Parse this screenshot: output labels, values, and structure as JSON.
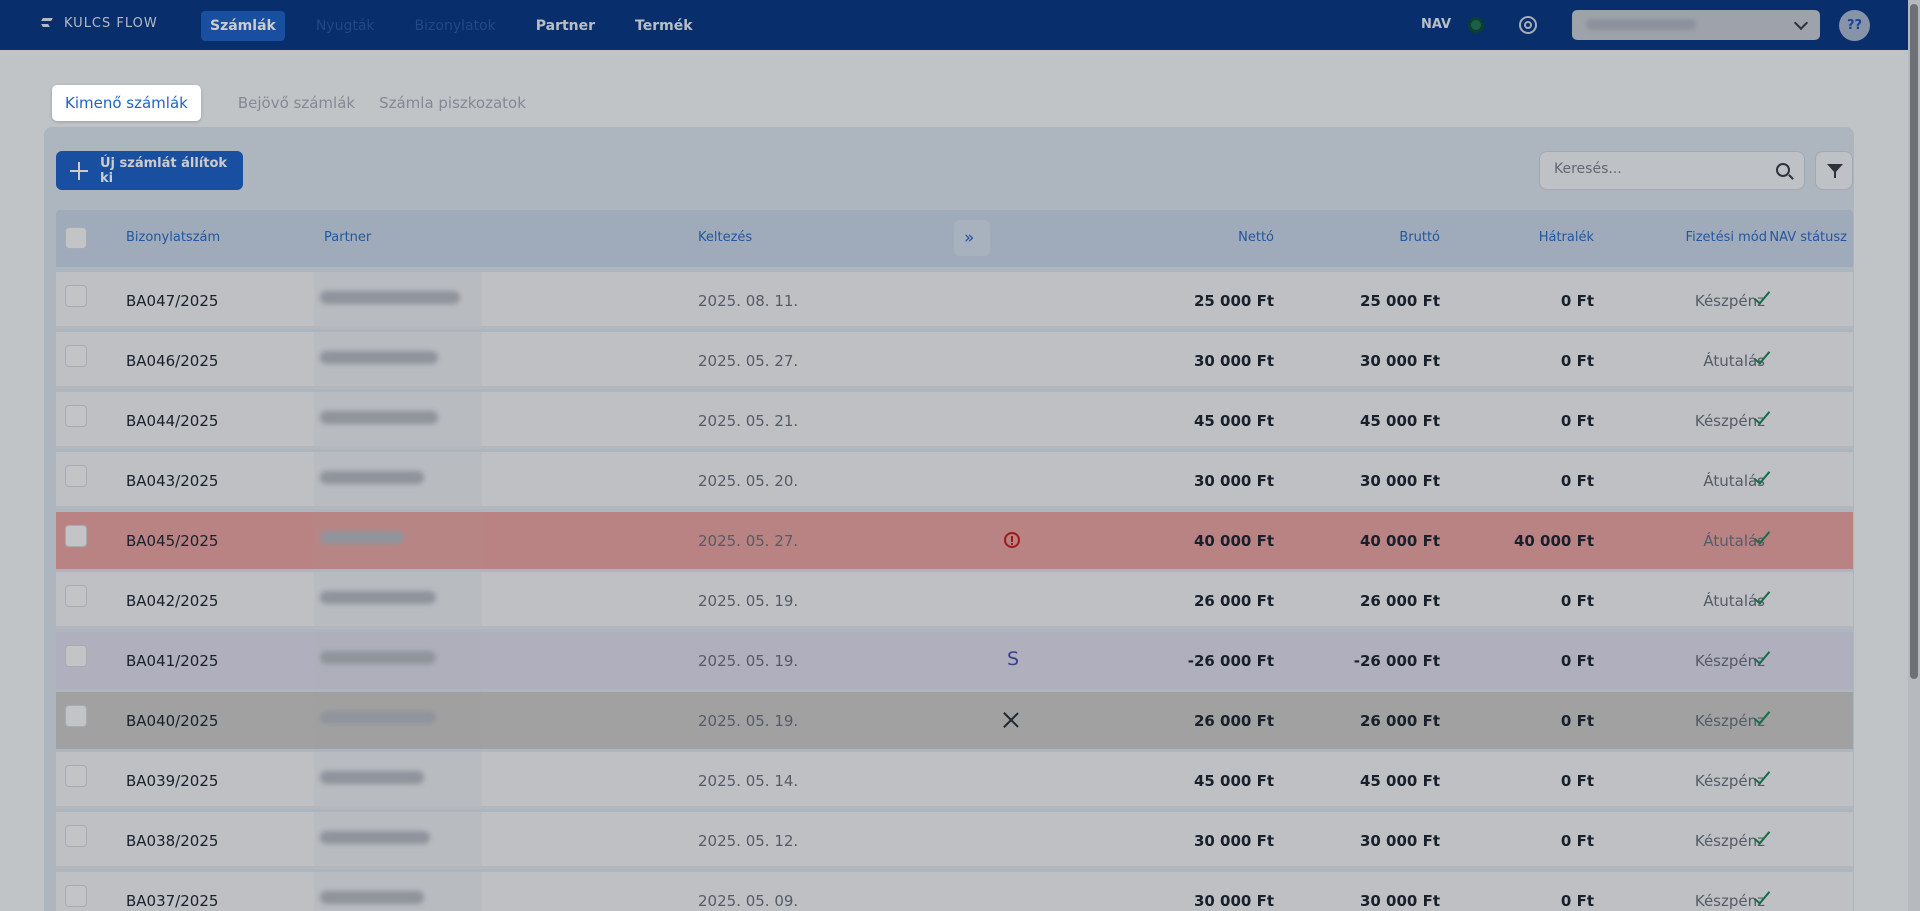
{
  "app": {
    "logo_text": "KULCS FLOW",
    "nav": [
      {
        "label": "Számlák",
        "state": "active"
      },
      {
        "label": "Nyugták",
        "state": "dim"
      },
      {
        "label": "Bizonylatok",
        "state": "dim"
      },
      {
        "label": "Partner",
        "state": "normal"
      },
      {
        "label": "Termék",
        "state": "normal"
      }
    ],
    "nav_status_label": "NAV",
    "help_label": "??"
  },
  "tabs": [
    {
      "label": "Kimenő számlák",
      "active": true
    },
    {
      "label": "Bejövő számlák",
      "active": false
    },
    {
      "label": "Számla piszkozatok",
      "active": false
    }
  ],
  "toolbar": {
    "new_invoice_label": "Új számlát állítok ki",
    "search_placeholder": "Keresés..."
  },
  "table": {
    "columns": {
      "number": "Bizonylatszám",
      "partner": "Partner",
      "date": "Keltezés",
      "net": "Nettó",
      "gross": "Bruttó",
      "arrears": "Hátralék",
      "payment": "Fizetési mód",
      "nav_status": "NAV státusz"
    },
    "rows": [
      {
        "number": "BA047/2025",
        "date": "2025. 08. 11.",
        "net": "25 000 Ft",
        "gross": "25 000 Ft",
        "arrears": "0 Ft",
        "payment": "Készpénz",
        "state": "normal",
        "marker": ""
      },
      {
        "number": "BA046/2025",
        "date": "2025. 05. 27.",
        "net": "30 000 Ft",
        "gross": "30 000 Ft",
        "arrears": "0 Ft",
        "payment": "Átutalás",
        "state": "normal",
        "marker": ""
      },
      {
        "number": "BA044/2025",
        "date": "2025. 05. 21.",
        "net": "45 000 Ft",
        "gross": "45 000 Ft",
        "arrears": "0 Ft",
        "payment": "Készpénz",
        "state": "normal",
        "marker": ""
      },
      {
        "number": "BA043/2025",
        "date": "2025. 05. 20.",
        "net": "30 000 Ft",
        "gross": "30 000 Ft",
        "arrears": "0 Ft",
        "payment": "Átutalás",
        "state": "normal",
        "marker": ""
      },
      {
        "number": "BA045/2025",
        "date": "2025. 05. 27.",
        "net": "40 000 Ft",
        "gross": "40 000 Ft",
        "arrears": "40 000 Ft",
        "payment": "Átutalás",
        "state": "error",
        "marker": "alert-circle-icon"
      },
      {
        "number": "BA042/2025",
        "date": "2025. 05. 19.",
        "net": "26 000 Ft",
        "gross": "26 000 Ft",
        "arrears": "0 Ft",
        "payment": "Átutalás",
        "state": "normal",
        "marker": ""
      },
      {
        "number": "BA041/2025",
        "date": "2025. 05. 19.",
        "net": "-26 000 Ft",
        "gross": "-26 000 Ft",
        "arrears": "0 Ft",
        "payment": "Készpénz",
        "state": "storno",
        "marker": "storno-icon",
        "marker_text": "S"
      },
      {
        "number": "BA040/2025",
        "date": "2025. 05. 19.",
        "net": "26 000 Ft",
        "gross": "26 000 Ft",
        "arrears": "0 Ft",
        "payment": "Készpénz",
        "state": "cancelled",
        "marker": "close-icon"
      },
      {
        "number": "BA039/2025",
        "date": "2025. 05. 14.",
        "net": "45 000 Ft",
        "gross": "45 000 Ft",
        "arrears": "0 Ft",
        "payment": "Készpénz",
        "state": "normal",
        "marker": ""
      },
      {
        "number": "BA038/2025",
        "date": "2025. 05. 12.",
        "net": "30 000 Ft",
        "gross": "30 000 Ft",
        "arrears": "0 Ft",
        "payment": "Készpénz",
        "state": "normal",
        "marker": ""
      },
      {
        "number": "BA037/2025",
        "date": "2025. 05. 09.",
        "net": "30 000 Ft",
        "gross": "30 000 Ft",
        "arrears": "0 Ft",
        "payment": "Készpénz",
        "state": "normal",
        "marker": ""
      }
    ]
  },
  "colors": {
    "topbar": "#0a3a86",
    "accent": "#1f63c9",
    "error_row": "#e9a4a4",
    "storno_row": "#dbdbee",
    "cancelled_row": "#cacaca",
    "nav_ok": "#1f8a5a"
  }
}
